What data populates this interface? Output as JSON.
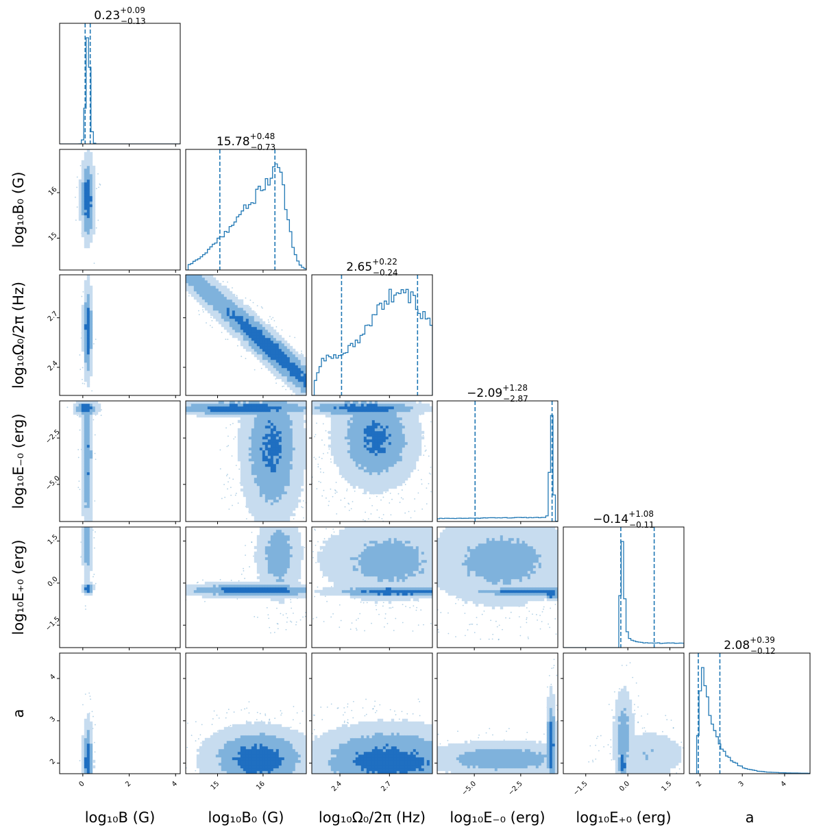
{
  "chart_data": {
    "type": "corner",
    "color": "#1f77b4",
    "fill_colors": [
      "#c7dcef",
      "#7fb2dc",
      "#1f6fc1"
    ],
    "parameters": [
      {
        "key": "logB",
        "axis_label": "log₁₀B (G)",
        "range": [
          -1.0,
          4.2
        ],
        "ticks": [
          "0",
          "2",
          "4"
        ],
        "tick_values": [
          0,
          2,
          4
        ],
        "title": {
          "value": "0.23",
          "upper": "+0.09",
          "lower": "−0.13"
        },
        "quantiles": [
          0.1,
          0.32
        ]
      },
      {
        "key": "logB0",
        "axis_label": "log₁₀B₀ (G)",
        "range": [
          14.3,
          16.95
        ],
        "ticks": [
          "15",
          "16"
        ],
        "tick_values": [
          15,
          16
        ],
        "title": {
          "value": "15.78",
          "upper": "+0.48",
          "lower": "−0.73"
        },
        "quantiles": [
          15.05,
          16.26
        ]
      },
      {
        "key": "logOm",
        "axis_label": "log₁₀Ω₀/2π (Hz)",
        "range": [
          2.23,
          2.96
        ],
        "ticks": [
          "2.4",
          "2.7"
        ],
        "tick_values": [
          2.4,
          2.7
        ],
        "title": {
          "value": "2.65",
          "upper": "+0.22",
          "lower": "−0.24"
        },
        "quantiles": [
          2.41,
          2.87
        ]
      },
      {
        "key": "logEm",
        "axis_label": "log₁₀E₋₀ (erg)",
        "range": [
          -7.0,
          -0.5
        ],
        "ticks": [
          "−5.0",
          "−2.5"
        ],
        "tick_values": [
          -5.0,
          -2.5
        ],
        "title": {
          "value": "−2.09",
          "upper": "+1.28",
          "lower": "−2.87"
        },
        "quantiles": [
          -4.96,
          -0.81
        ]
      },
      {
        "key": "logEp",
        "axis_label": "log₁₀E₊₀ (erg)",
        "range": [
          -2.3,
          2.0
        ],
        "ticks": [
          "−1.5",
          "0.0",
          "1.5"
        ],
        "tick_values": [
          -1.5,
          0.0,
          1.5
        ],
        "title": {
          "value": "−0.14",
          "upper": "+1.08",
          "lower": "−0.11"
        },
        "quantiles": [
          -0.25,
          0.94
        ]
      },
      {
        "key": "a",
        "axis_label": "a",
        "range": [
          1.75,
          4.6
        ],
        "ticks": [
          "2",
          "3",
          "4"
        ],
        "tick_values": [
          2,
          3,
          4
        ],
        "title": {
          "value": "2.08",
          "upper": "+0.39",
          "lower": "−0.12"
        },
        "quantiles": [
          1.96,
          2.47
        ]
      }
    ]
  }
}
